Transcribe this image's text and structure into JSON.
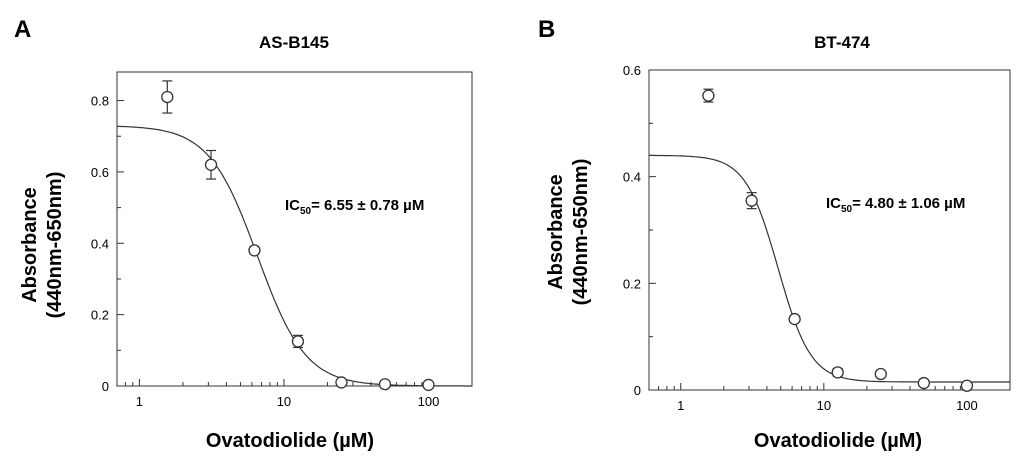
{
  "chart_data": [
    {
      "panel": "A",
      "type": "scatter",
      "title": "AS-B145",
      "xlabel": "Ovatodiolide (µM)",
      "ylabel": "Absorbance (440nm-650nm)",
      "ylabel_lines": [
        "Absorbance",
        "(440nm-650nm)"
      ],
      "xscale": "log",
      "xlim": [
        0.7,
        200
      ],
      "ylim": [
        0,
        0.88
      ],
      "xticks": [
        1,
        10,
        100
      ],
      "xtick_labels": [
        "1",
        "10",
        "100"
      ],
      "yticks": [
        0,
        0.2,
        0.4,
        0.6,
        0.8
      ],
      "ytick_labels": [
        "0",
        "0.2",
        "0.4",
        "0.6",
        "0.8"
      ],
      "points": [
        {
          "x": 1.56,
          "y": 0.81,
          "err": 0.045
        },
        {
          "x": 3.13,
          "y": 0.62,
          "err": 0.04
        },
        {
          "x": 6.25,
          "y": 0.38,
          "err": 0.01
        },
        {
          "x": 12.5,
          "y": 0.125,
          "err": 0.017
        },
        {
          "x": 25,
          "y": 0.01,
          "err": 0.005
        },
        {
          "x": 50,
          "y": 0.005,
          "err": 0.004
        },
        {
          "x": 100,
          "y": 0.003,
          "err": 0.003
        }
      ],
      "fit": {
        "top": 0.73,
        "bottom": 0,
        "ic50": 6.55,
        "hill": 2.6
      },
      "annotation": {
        "prefix": "IC",
        "sub": "50",
        "text": "= 6.55 ± 0.78 µM"
      },
      "grid": false
    },
    {
      "panel": "B",
      "type": "scatter",
      "title": "BT-474",
      "xlabel": "Ovatodiolide (µM)",
      "ylabel": "Absorbance (440nm-650nm)",
      "ylabel_lines": [
        "Absorbance",
        "(440nm-650nm)"
      ],
      "xscale": "log",
      "xlim": [
        0.6,
        200
      ],
      "ylim": [
        0,
        0.6
      ],
      "xticks": [
        1,
        10,
        100
      ],
      "xtick_labels": [
        "1",
        "10",
        "100"
      ],
      "yticks": [
        0,
        0.2,
        0.4,
        0.6
      ],
      "ytick_labels": [
        "0",
        "0.2",
        "0.4",
        "0.6"
      ],
      "points": [
        {
          "x": 1.56,
          "y": 0.552,
          "err": 0.012
        },
        {
          "x": 3.13,
          "y": 0.355,
          "err": 0.015
        },
        {
          "x": 6.25,
          "y": 0.133,
          "err": 0.006
        },
        {
          "x": 12.5,
          "y": 0.033,
          "err": 0.007
        },
        {
          "x": 25,
          "y": 0.03,
          "err": 0.004
        },
        {
          "x": 50,
          "y": 0.013,
          "err": 0.006
        },
        {
          "x": 100,
          "y": 0.008,
          "err": 0.004
        }
      ],
      "fit": {
        "top": 0.44,
        "bottom": 0.015,
        "ic50": 4.8,
        "hill": 3.8
      },
      "annotation": {
        "prefix": "IC",
        "sub": "50",
        "text": "= 4.80 ± 1.06 µM"
      },
      "grid": false
    }
  ]
}
